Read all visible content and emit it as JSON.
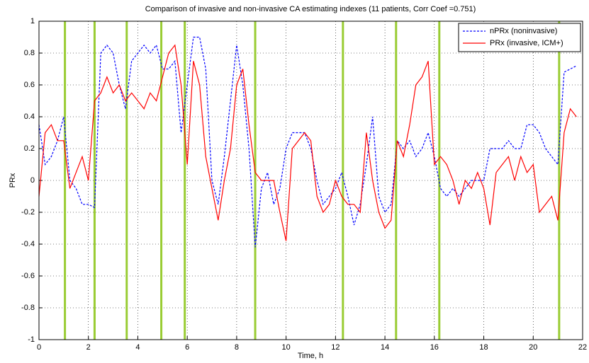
{
  "chart_data": {
    "type": "line",
    "title": "Comparison of invasive and non-invasive CA estimating indexes (11 patients, Corr Coef =0.751)",
    "x_label": "Time, h",
    "y_label": "PRx",
    "x": [
      0,
      0.25,
      0.5,
      0.75,
      1,
      1.25,
      1.5,
      1.75,
      2,
      2.25,
      2.5,
      2.75,
      3,
      3.25,
      3.5,
      3.75,
      4,
      4.25,
      4.5,
      4.75,
      5,
      5.25,
      5.5,
      5.75,
      6,
      6.25,
      6.5,
      6.75,
      7,
      7.25,
      7.5,
      7.75,
      8,
      8.25,
      8.5,
      8.75,
      9,
      9.25,
      9.5,
      9.75,
      10,
      10.25,
      10.5,
      10.75,
      11,
      11.25,
      11.5,
      11.75,
      12,
      12.25,
      12.5,
      12.75,
      13,
      13.25,
      13.5,
      13.75,
      14,
      14.25,
      14.5,
      14.75,
      15,
      15.25,
      15.5,
      15.75,
      16,
      16.25,
      16.5,
      16.75,
      17,
      17.25,
      17.5,
      17.75,
      18,
      18.25,
      18.5,
      18.75,
      19,
      19.25,
      19.5,
      19.75,
      20,
      20.25,
      20.5,
      20.75,
      21,
      21.25,
      21.5,
      21.75
    ],
    "series": [
      {
        "name": "nPRx (noninvasive)",
        "color": "#0000ff",
        "dashed": true,
        "values": [
          0.35,
          0.1,
          0.15,
          0.25,
          0.4,
          0.0,
          -0.05,
          -0.15,
          -0.15,
          -0.17,
          0.8,
          0.85,
          0.8,
          0.6,
          0.45,
          0.75,
          0.8,
          0.85,
          0.8,
          0.85,
          0.7,
          0.7,
          0.75,
          0.3,
          0.6,
          0.9,
          0.9,
          0.7,
          0.0,
          -0.15,
          0.15,
          0.5,
          0.85,
          0.6,
          0.2,
          -0.42,
          -0.05,
          0.05,
          -0.15,
          -0.05,
          0.2,
          0.3,
          0.3,
          0.3,
          0.2,
          0.0,
          -0.15,
          -0.1,
          -0.05,
          0.05,
          -0.1,
          -0.28,
          -0.15,
          0.1,
          0.4,
          -0.1,
          -0.2,
          -0.15,
          0.25,
          0.2,
          0.25,
          0.15,
          0.2,
          0.3,
          0.15,
          -0.05,
          -0.1,
          -0.05,
          -0.1,
          -0.05,
          0.0,
          0.0,
          0.0,
          0.2,
          0.2,
          0.2,
          0.25,
          0.2,
          0.2,
          0.35,
          0.35,
          0.3,
          0.2,
          0.15,
          0.1,
          0.68,
          0.7,
          0.72
        ]
      },
      {
        "name": "PRx (invasive, ICM+)",
        "color": "#ff0000",
        "dashed": false,
        "values": [
          -0.1,
          0.3,
          0.35,
          0.25,
          0.25,
          -0.05,
          0.05,
          0.15,
          0.0,
          0.5,
          0.55,
          0.65,
          0.55,
          0.6,
          0.5,
          0.55,
          0.5,
          0.45,
          0.55,
          0.5,
          0.65,
          0.8,
          0.85,
          0.6,
          0.1,
          0.75,
          0.6,
          0.15,
          -0.05,
          -0.25,
          0.0,
          0.2,
          0.6,
          0.7,
          0.35,
          0.05,
          0.0,
          0.0,
          0.0,
          -0.2,
          -0.38,
          0.2,
          0.25,
          0.3,
          0.25,
          -0.1,
          -0.2,
          -0.15,
          0.0,
          -0.1,
          -0.15,
          -0.15,
          -0.2,
          0.3,
          0.0,
          -0.2,
          -0.3,
          -0.25,
          0.25,
          0.15,
          0.35,
          0.6,
          0.65,
          0.75,
          0.1,
          0.15,
          0.1,
          0.0,
          -0.15,
          0.0,
          -0.05,
          0.05,
          -0.05,
          -0.28,
          0.05,
          0.1,
          0.15,
          0.0,
          0.15,
          0.05,
          0.1,
          -0.2,
          -0.15,
          -0.1,
          -0.25,
          0.3,
          0.45,
          0.4
        ]
      }
    ],
    "separators": [
      1.05,
      2.25,
      3.55,
      4.95,
      5.9,
      8.75,
      12.3,
      14.45,
      16.2,
      21.05
    ],
    "separator_color": "#99cc33",
    "xlim": [
      0,
      22
    ],
    "xticks": [
      0,
      2,
      4,
      6,
      8,
      10,
      12,
      14,
      16,
      18,
      20,
      22
    ],
    "ylim": [
      -1,
      1
    ],
    "yticks": [
      -1,
      -0.8,
      -0.6,
      -0.4,
      -0.2,
      0,
      0.2,
      0.4,
      0.6,
      0.8,
      1
    ],
    "grid": true,
    "legend": "upper-right"
  }
}
